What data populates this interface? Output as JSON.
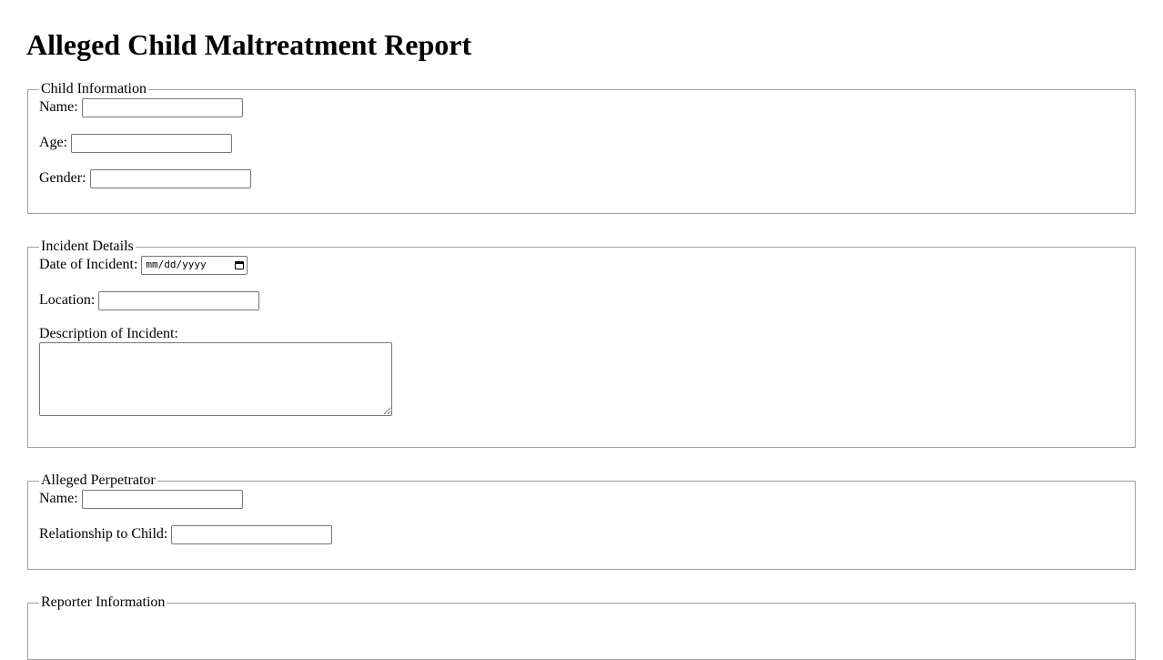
{
  "title": "Alleged Child Maltreatment Report",
  "child": {
    "legend": "Child Information",
    "name": "Name:",
    "age": "Age:",
    "gender": "Gender:"
  },
  "incident": {
    "legend": "Incident Details",
    "date": "Date of Incident:",
    "date_placeholder": "mm/dd/yyyy",
    "location": "Location:",
    "description": "Description of Incident:"
  },
  "perpetrator": {
    "legend": "Alleged Perpetrator",
    "name": "Name:",
    "relationship": "Relationship to Child:"
  },
  "reporter": {
    "legend": "Reporter Information"
  }
}
